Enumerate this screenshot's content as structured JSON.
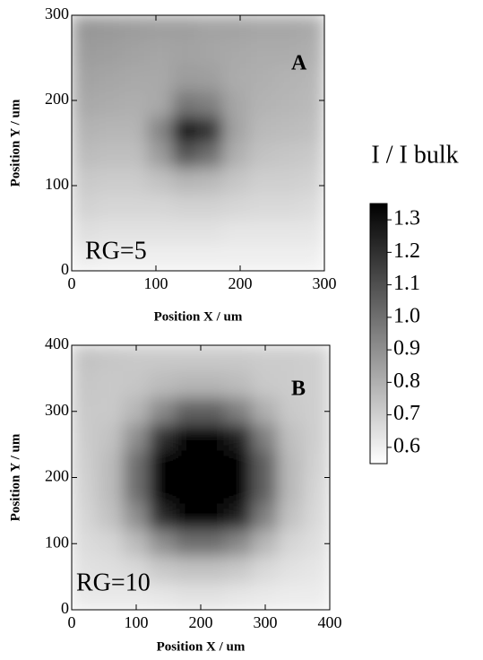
{
  "chart_data": [
    {
      "type": "heatmap",
      "panel_label": "A",
      "annotation": "RG=5",
      "xlabel": "Position X / um",
      "ylabel": "Position Y / um",
      "xlim": [
        0,
        300
      ],
      "ylim": [
        0,
        300
      ],
      "xticks": [
        0,
        100,
        200,
        300
      ],
      "yticks": [
        0,
        100,
        200,
        300
      ],
      "x": [
        15,
        45,
        75,
        105,
        135,
        165,
        195,
        225,
        255,
        285
      ],
      "y": [
        285,
        255,
        225,
        195,
        165,
        135,
        105,
        75,
        45,
        15
      ],
      "z": [
        [
          0.88,
          0.87,
          0.86,
          0.85,
          0.85,
          0.84,
          0.84,
          0.83,
          0.83,
          0.82
        ],
        [
          0.86,
          0.85,
          0.84,
          0.83,
          0.84,
          0.83,
          0.82,
          0.81,
          0.81,
          0.8
        ],
        [
          0.84,
          0.83,
          0.82,
          0.82,
          0.86,
          0.85,
          0.81,
          0.8,
          0.79,
          0.78
        ],
        [
          0.82,
          0.81,
          0.8,
          0.82,
          0.98,
          0.95,
          0.83,
          0.79,
          0.78,
          0.77
        ],
        [
          0.79,
          0.78,
          0.78,
          0.93,
          1.3,
          1.19,
          0.84,
          0.77,
          0.76,
          0.75
        ],
        [
          0.76,
          0.75,
          0.75,
          0.86,
          1.08,
          1.0,
          0.8,
          0.74,
          0.73,
          0.72
        ],
        [
          0.72,
          0.71,
          0.71,
          0.74,
          0.78,
          0.77,
          0.73,
          0.7,
          0.7,
          0.69
        ],
        [
          0.69,
          0.68,
          0.68,
          0.68,
          0.69,
          0.69,
          0.68,
          0.67,
          0.67,
          0.66
        ],
        [
          0.65,
          0.64,
          0.64,
          0.64,
          0.64,
          0.64,
          0.63,
          0.63,
          0.63,
          0.63
        ],
        [
          0.61,
          0.6,
          0.6,
          0.6,
          0.6,
          0.6,
          0.6,
          0.6,
          0.6,
          0.6
        ]
      ]
    },
    {
      "type": "heatmap",
      "panel_label": "B",
      "annotation": "RG=10",
      "xlabel": "Position X / um",
      "ylabel": "Position Y / um",
      "xlim": [
        0,
        400
      ],
      "ylim": [
        0,
        400
      ],
      "xticks": [
        0,
        100,
        200,
        300,
        400
      ],
      "yticks": [
        0,
        100,
        200,
        300,
        400
      ],
      "x": [
        20,
        60,
        100,
        140,
        180,
        220,
        260,
        300,
        340,
        380
      ],
      "y": [
        380,
        340,
        300,
        260,
        220,
        180,
        140,
        100,
        60,
        20
      ],
      "z": [
        [
          0.74,
          0.73,
          0.72,
          0.72,
          0.72,
          0.72,
          0.72,
          0.71,
          0.71,
          0.7
        ],
        [
          0.73,
          0.72,
          0.73,
          0.76,
          0.78,
          0.78,
          0.76,
          0.72,
          0.71,
          0.7
        ],
        [
          0.72,
          0.72,
          0.78,
          0.92,
          1.05,
          1.05,
          0.95,
          0.8,
          0.72,
          0.7
        ],
        [
          0.71,
          0.74,
          0.9,
          1.2,
          1.35,
          1.35,
          1.25,
          0.95,
          0.75,
          0.7
        ],
        [
          0.7,
          0.76,
          1.0,
          1.35,
          1.4,
          1.4,
          1.35,
          1.05,
          0.77,
          0.69
        ],
        [
          0.69,
          0.76,
          1.0,
          1.35,
          1.4,
          1.4,
          1.35,
          1.05,
          0.77,
          0.68
        ],
        [
          0.68,
          0.74,
          0.9,
          1.22,
          1.36,
          1.36,
          1.25,
          0.95,
          0.74,
          0.67
        ],
        [
          0.66,
          0.68,
          0.76,
          0.9,
          1.0,
          1.0,
          0.92,
          0.78,
          0.68,
          0.65
        ],
        [
          0.64,
          0.65,
          0.67,
          0.72,
          0.74,
          0.74,
          0.72,
          0.67,
          0.64,
          0.63
        ],
        [
          0.62,
          0.62,
          0.62,
          0.63,
          0.64,
          0.64,
          0.63,
          0.62,
          0.61,
          0.61
        ]
      ]
    }
  ],
  "colorbar": {
    "title": "I / I bulk",
    "lim": [
      0.55,
      1.35
    ],
    "ticks": [
      0.6,
      0.7,
      0.8,
      0.9,
      {
        "value": 1,
        "label": "1.0"
      },
      1.1,
      1.2,
      1.3
    ]
  }
}
